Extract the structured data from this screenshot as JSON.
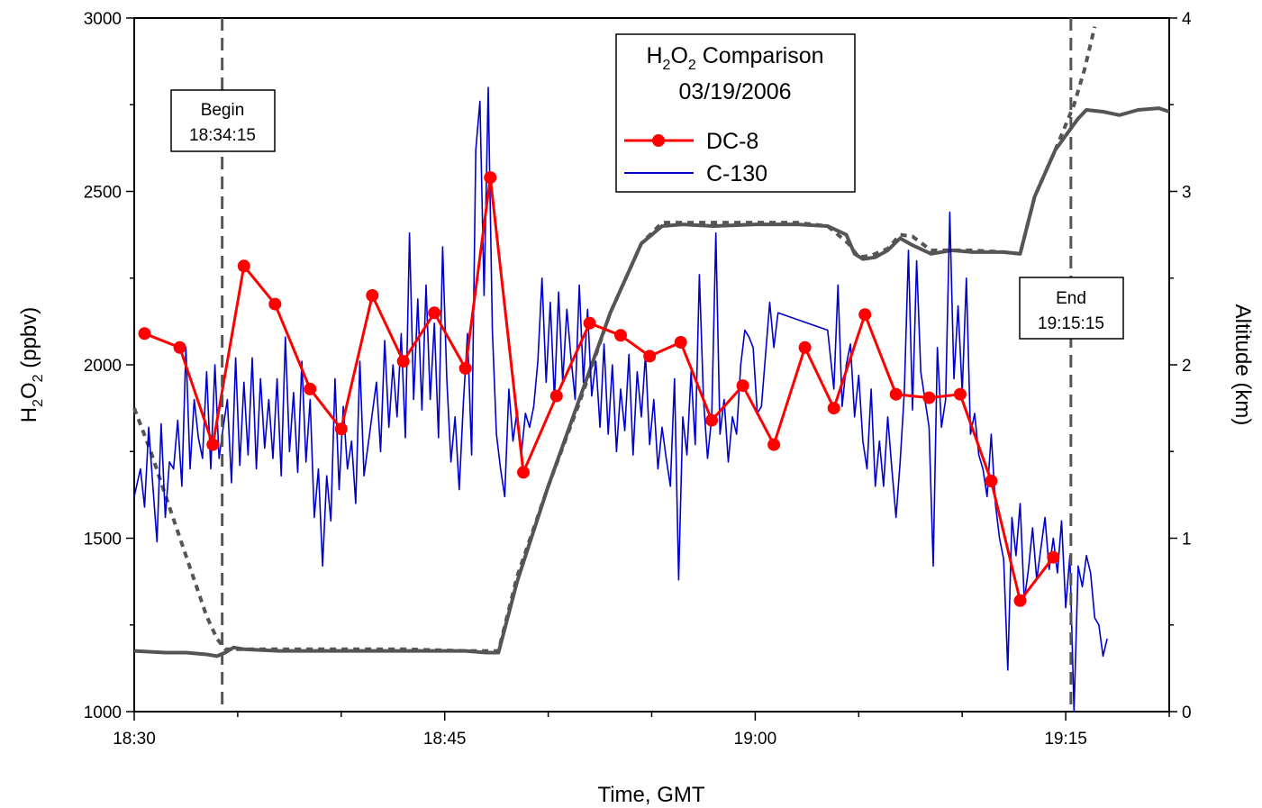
{
  "chart_data": {
    "type": "line",
    "legend_title": "H2O2 Comparison",
    "legend_subtitle": "03/19/2006",
    "xlabel": "Time, GMT",
    "ylabel": "H2O2  (ppbv)",
    "ylabel_right": "Altitude  (km)",
    "xlim": [
      "18:30",
      "19:20"
    ],
    "ylim": [
      1000,
      3000
    ],
    "ylim_right": [
      0,
      4
    ],
    "x_ticks": [
      "18:30",
      "18:45",
      "19:00",
      "19:15"
    ],
    "y_ticks": [
      "1000",
      "1500",
      "2000",
      "2500",
      "3000"
    ],
    "y_ticks_right": [
      "0",
      "1",
      "2",
      "3",
      "4"
    ],
    "grid": false,
    "legend_position": "top-center",
    "annotations": [
      {
        "text_line1": "Begin",
        "text_line2": "18:34:15",
        "time_min": 4.25
      },
      {
        "text_line1": "End",
        "text_line2": "19:15:15",
        "time_min": 45.25
      }
    ],
    "colors": {
      "dc8": "#ff0000",
      "c130": "#0000cc",
      "altitude": "#555555"
    },
    "series": [
      {
        "name": "DC-8",
        "axis": "left",
        "x_min": [
          0.5,
          2.2,
          3.8,
          5.3,
          6.8,
          8.5,
          10.0,
          11.5,
          13.0,
          14.5,
          16.0,
          17.2,
          18.8,
          20.4,
          22.0,
          23.5,
          24.9,
          26.4,
          27.9,
          29.4,
          30.9,
          32.4,
          33.8,
          35.3,
          36.8,
          38.4,
          39.9,
          41.4,
          42.8,
          44.4
        ],
        "values": [
          2090,
          2050,
          1770,
          2285,
          2175,
          1930,
          1815,
          2200,
          2010,
          2150,
          1990,
          2540,
          1690,
          1910,
          2120,
          2085,
          2025,
          2065,
          1840,
          1940,
          1770,
          2050,
          1875,
          2145,
          1915,
          1905,
          1915,
          1665,
          1320,
          1445
        ]
      },
      {
        "name": "C-130",
        "axis": "left",
        "x_min": [
          0.0,
          0.3,
          0.5,
          0.7,
          0.9,
          1.1,
          1.3,
          1.5,
          1.7,
          1.9,
          2.1,
          2.3,
          2.5,
          2.7,
          2.9,
          3.1,
          3.3,
          3.5,
          3.7,
          3.9,
          4.1,
          4.3,
          4.5,
          4.7,
          4.9,
          5.1,
          5.3,
          5.5,
          5.7,
          5.9,
          6.1,
          6.3,
          6.5,
          6.7,
          6.9,
          7.1,
          7.3,
          7.5,
          7.7,
          7.9,
          8.1,
          8.3,
          8.5,
          8.7,
          8.9,
          9.1,
          9.3,
          9.5,
          9.7,
          9.9,
          10.1,
          10.3,
          10.5,
          10.7,
          10.9,
          11.1,
          11.3,
          11.5,
          11.7,
          11.9,
          12.1,
          12.3,
          12.5,
          12.7,
          12.9,
          13.1,
          13.3,
          13.5,
          13.7,
          13.9,
          14.1,
          14.3,
          14.5,
          14.7,
          14.9,
          15.1,
          15.3,
          15.5,
          15.7,
          15.9,
          16.1,
          16.3,
          16.5,
          16.7,
          16.9,
          17.1,
          17.3,
          17.5,
          17.7,
          17.9,
          18.1,
          18.3,
          18.5,
          18.7,
          18.9,
          19.1,
          19.3,
          19.5,
          19.7,
          19.9,
          20.1,
          20.3,
          20.5,
          20.7,
          20.9,
          21.1,
          21.3,
          21.5,
          21.7,
          21.9,
          22.1,
          22.3,
          22.5,
          22.7,
          22.9,
          23.1,
          23.3,
          23.5,
          23.7,
          23.9,
          24.1,
          24.3,
          24.5,
          24.7,
          24.9,
          25.1,
          25.3,
          25.5,
          25.7,
          25.9,
          26.1,
          26.3,
          26.5,
          26.7,
          26.9,
          27.1,
          27.3,
          27.5,
          27.7,
          27.9,
          28.1,
          28.3,
          28.5,
          28.7,
          28.9,
          29.1,
          29.3,
          29.5,
          29.7,
          29.9,
          30.1,
          30.3,
          30.5,
          30.7,
          30.9,
          31.1,
          33.5,
          33.8,
          34.0,
          34.2,
          34.4,
          34.6,
          34.8,
          35.0,
          35.2,
          35.4,
          35.6,
          35.8,
          36.0,
          36.2,
          36.4,
          36.6,
          36.8,
          37.0,
          37.2,
          37.4,
          37.6,
          37.8,
          38.0,
          38.2,
          38.4,
          38.6,
          38.8,
          39.0,
          39.2,
          39.4,
          39.6,
          39.8,
          40.0,
          40.2,
          40.4,
          40.6,
          40.8,
          41.0,
          41.2,
          41.4,
          41.6,
          41.8,
          42.0,
          42.2,
          42.4,
          42.6,
          42.8,
          43.0,
          43.2,
          43.4,
          43.6,
          43.8,
          44.0,
          44.2,
          44.4,
          44.6,
          44.8,
          45.0,
          45.2,
          45.4,
          45.6,
          45.8,
          46.0,
          46.2,
          46.4,
          46.6,
          46.8,
          47.0,
          47.2,
          47.4,
          47.6,
          48.0,
          49.5
        ],
        "values": [
          1620,
          1700,
          1590,
          1820,
          1650,
          1490,
          1830,
          1560,
          1720,
          1700,
          1840,
          1650,
          2050,
          1700,
          1900,
          1790,
          1730,
          1980,
          1700,
          2000,
          1730,
          1820,
          1900,
          1660,
          2020,
          1710,
          1950,
          1740,
          2020,
          1700,
          1960,
          1760,
          1900,
          1730,
          1960,
          1680,
          2080,
          1750,
          1920,
          1690,
          2010,
          1720,
          1900,
          1560,
          1700,
          1420,
          1680,
          1550,
          1960,
          1640,
          1880,
          1700,
          1780,
          1600,
          2010,
          1680,
          1770,
          1860,
          1950,
          1750,
          2070,
          1820,
          2000,
          1850,
          2090,
          1790,
          2380,
          1900,
          2190,
          1870,
          2230,
          1900,
          2120,
          1790,
          2340,
          1960,
          1720,
          1850,
          1640,
          1890,
          2090,
          1740,
          2620,
          2760,
          2200,
          2800,
          2100,
          1800,
          1700,
          1620,
          1930,
          1780,
          1870,
          1740,
          1860,
          1820,
          1880,
          2010,
          2250,
          1950,
          2180,
          1900,
          2210,
          1950,
          2160,
          2020,
          1900,
          2230,
          1950,
          2160,
          1910,
          2010,
          1820,
          2060,
          1800,
          2000,
          1750,
          1930,
          1810,
          2030,
          1740,
          1980,
          1850,
          2030,
          1770,
          1900,
          1700,
          1820,
          1730,
          1650,
          1960,
          1380,
          1850,
          1740,
          1980,
          1770,
          2260,
          1900,
          1730,
          1850,
          2380,
          1800,
          1900,
          1720,
          1850,
          1800,
          2000,
          2100,
          2080,
          2050,
          1860,
          1880,
          2030,
          2180,
          2050,
          2150,
          2100,
          1930,
          2230,
          1880,
          2000,
          2060,
          1850,
          1970,
          1780,
          1700,
          1930,
          1650,
          1780,
          1650,
          1850,
          1700,
          1560,
          1720,
          1920,
          2330,
          1870,
          2300,
          1980,
          1900,
          1820,
          1420,
          2050,
          1820,
          1900,
          2440,
          1960,
          2170,
          1920,
          2250,
          1800,
          1860,
          1740,
          1700,
          1620,
          1800,
          1600,
          1500,
          1440,
          1120,
          1560,
          1450,
          1600,
          1320,
          1410,
          1530,
          1380,
          1470,
          1560,
          1410,
          1500,
          1400,
          1550,
          1300,
          1450,
          1000,
          1420,
          1360,
          1450,
          1400,
          1270,
          1250,
          1160,
          1210
        ]
      },
      {
        "name": "Altitude (C-130)",
        "axis": "right",
        "style": "solid",
        "x_min": [
          0,
          1.5,
          2.5,
          3.5,
          4.0,
          4.4,
          4.8,
          5.3,
          7.0,
          10.0,
          13.0,
          16.0,
          17.0,
          17.6,
          18.5,
          20.0,
          21.5,
          23.0,
          24.5,
          25.5,
          26.5,
          28.0,
          30.0,
          32.0,
          33.5,
          34.4,
          34.8,
          35.2,
          35.8,
          36.4,
          37.0,
          37.6,
          38.5,
          39.5,
          40.5,
          42.0,
          42.8,
          43.5,
          44.5,
          45.6,
          46.0,
          46.8,
          47.6,
          48.5,
          49.5,
          50.0
        ],
        "values": [
          0.35,
          0.34,
          0.34,
          0.33,
          0.32,
          0.34,
          0.37,
          0.36,
          0.35,
          0.35,
          0.35,
          0.35,
          0.34,
          0.34,
          0.75,
          1.3,
          1.8,
          2.3,
          2.7,
          2.8,
          2.81,
          2.8,
          2.81,
          2.81,
          2.8,
          2.75,
          2.64,
          2.61,
          2.62,
          2.66,
          2.73,
          2.69,
          2.64,
          2.66,
          2.65,
          2.65,
          2.64,
          2.97,
          3.24,
          3.42,
          3.47,
          3.46,
          3.44,
          3.47,
          3.48,
          3.46
        ]
      },
      {
        "name": "Altitude (DC-8)",
        "axis": "right",
        "style": "dashed",
        "x_min": [
          0,
          0.8,
          1.5,
          2.5,
          3.5,
          4.0,
          4.4,
          5.0,
          7.0,
          10.0,
          13.0,
          16.0,
          17.0,
          17.6,
          18.5,
          20.0,
          21.5,
          23.0,
          24.5,
          25.5,
          26.5,
          28.0,
          30.0,
          32.0,
          33.5,
          34.5,
          35.0,
          35.6,
          36.4,
          37.0,
          37.6,
          38.5,
          39.5,
          40.5,
          42.0,
          42.8,
          43.5,
          44.5,
          45.4,
          45.9,
          46.4
        ],
        "values": [
          1.75,
          1.5,
          1.25,
          0.9,
          0.55,
          0.42,
          0.36,
          0.36,
          0.36,
          0.36,
          0.36,
          0.35,
          0.35,
          0.35,
          0.78,
          1.3,
          1.78,
          2.3,
          2.7,
          2.82,
          2.82,
          2.82,
          2.82,
          2.82,
          2.8,
          2.7,
          2.62,
          2.63,
          2.67,
          2.75,
          2.74,
          2.66,
          2.66,
          2.66,
          2.65,
          2.64,
          2.97,
          3.24,
          3.5,
          3.7,
          3.95
        ]
      }
    ]
  }
}
